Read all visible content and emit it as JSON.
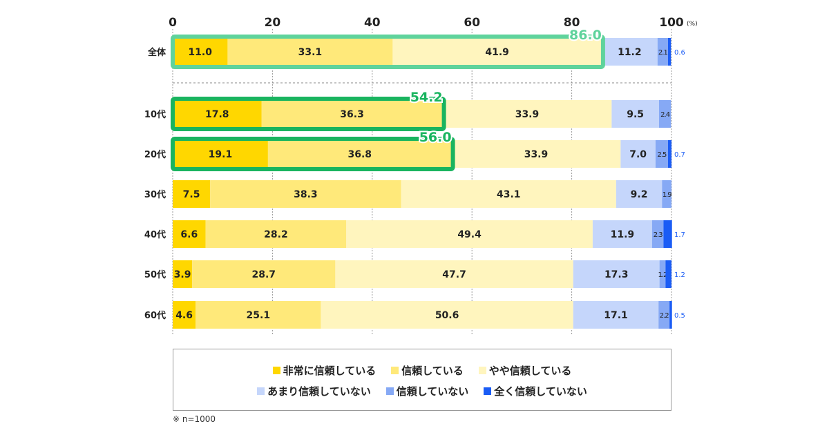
{
  "chart_data": {
    "type": "bar",
    "orientation": "horizontal",
    "stacked": true,
    "categories": [
      "全体",
      "10代",
      "20代",
      "30代",
      "40代",
      "50代",
      "60代"
    ],
    "series": [
      {
        "name": "非常に信頼している",
        "color": "#ffd700",
        "values": [
          11.0,
          17.8,
          19.1,
          7.5,
          6.6,
          3.9,
          4.6
        ]
      },
      {
        "name": "信頼している",
        "color": "#ffe97a",
        "values": [
          33.1,
          36.3,
          36.8,
          38.3,
          28.2,
          28.7,
          25.1
        ]
      },
      {
        "name": "やや信頼している",
        "color": "#fff5be",
        "values": [
          41.9,
          33.9,
          33.9,
          43.1,
          49.4,
          47.7,
          50.6
        ]
      },
      {
        "name": "あまり信頼していない",
        "color": "#c5d6fb",
        "values": [
          11.2,
          9.5,
          7.0,
          9.2,
          11.9,
          17.3,
          17.1
        ]
      },
      {
        "name": "信頼していない",
        "color": "#86a9f5",
        "values": [
          2.1,
          2.4,
          2.5,
          1.9,
          2.3,
          1.2,
          2.2
        ]
      },
      {
        "name": "全く信頼していない",
        "color": "#1a5cf5",
        "values": [
          0.6,
          0,
          0.7,
          0,
          1.7,
          1.2,
          0.5
        ]
      }
    ],
    "highlights": [
      {
        "category": "全体",
        "label": "86.0",
        "color": "#5fd39c"
      },
      {
        "category": "10代",
        "label": "54.2",
        "color": "#19b45f"
      },
      {
        "category": "20代",
        "label": "56.0",
        "color": "#19b45f"
      }
    ],
    "xlim": [
      0,
      100
    ],
    "xticks": [
      "0",
      "20",
      "40",
      "60",
      "80",
      "100"
    ],
    "xunit": "(%)",
    "grid": true,
    "legend": "bottom"
  },
  "note": "※ n=1000"
}
